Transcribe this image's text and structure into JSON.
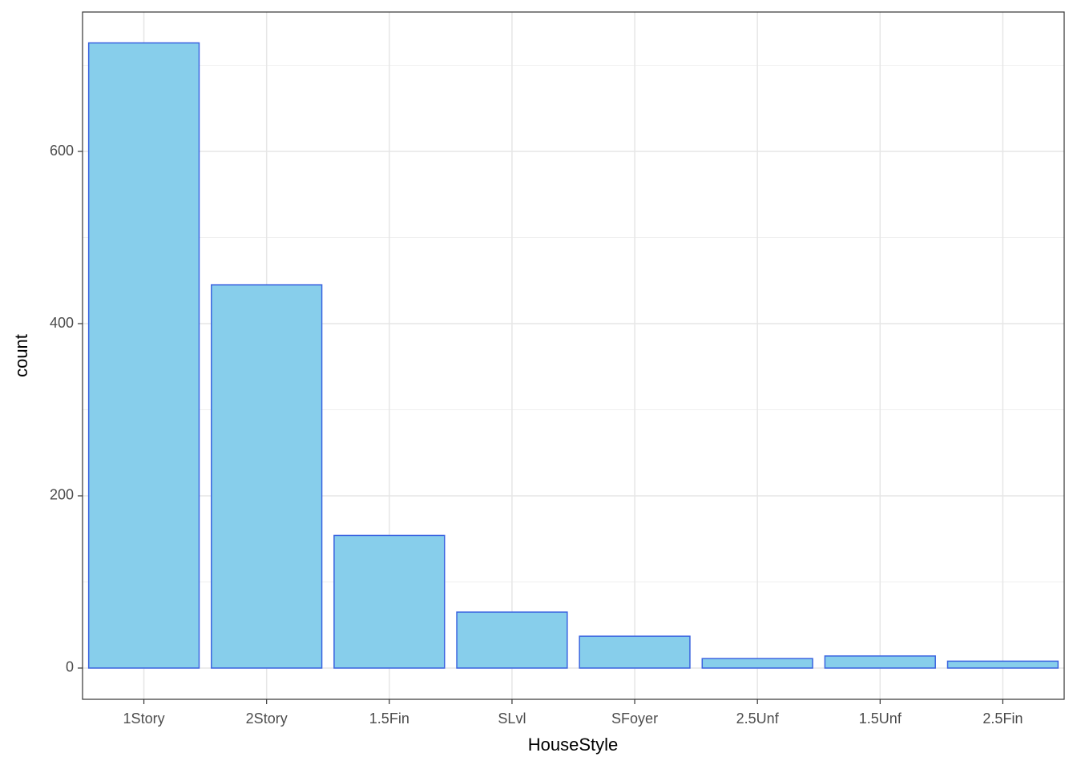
{
  "chart_data": {
    "type": "bar",
    "x_label": "HouseStyle",
    "y_label": "count",
    "categories": [
      "1Story",
      "2Story",
      "1.5Fin",
      "SLvl",
      "SFoyer",
      "2.5Unf",
      "1.5Unf",
      "2.5Fin"
    ],
    "values": [
      726,
      445,
      154,
      65,
      37,
      11,
      14,
      8
    ],
    "color": "#87ceeb",
    "edge_color": "#3b64e0",
    "ylim": [
      -36.3,
      761.9
    ],
    "yticks": [
      0,
      200,
      400,
      600
    ],
    "y_minor_gridlines": [
      100,
      300,
      500,
      700
    ],
    "grid": true
  }
}
